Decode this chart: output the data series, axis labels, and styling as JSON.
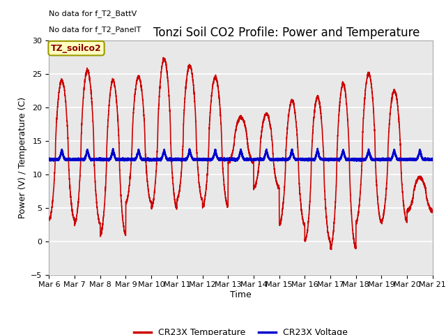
{
  "title": "Tonzi Soil CO2 Profile: Power and Temperature",
  "ylabel": "Power (V) / Temperature (C)",
  "xlabel": "Time",
  "ylim": [
    -5,
    30
  ],
  "yticks": [
    -5,
    0,
    5,
    10,
    15,
    20,
    25,
    30
  ],
  "xlim": [
    0,
    15
  ],
  "xtick_labels": [
    "Mar 6",
    "Mar 7",
    "Mar 8",
    "Mar 9",
    "Mar 10",
    "Mar 11",
    "Mar 12",
    "Mar 13",
    "Mar 14",
    "Mar 15",
    "Mar 16",
    "Mar 17",
    "Mar 18",
    "Mar 19",
    "Mar 20",
    "Mar 21"
  ],
  "no_data_text1": "No data for f_T2_BattV",
  "no_data_text2": "No data for f_T2_PanelT",
  "legend_label_box": "TZ_soilco2",
  "temp_color": "#CC0000",
  "voltage_color": "#0000CC",
  "plot_bg_color": "#E8E8E8",
  "grid_color": "#FFFFFF",
  "legend_temp": "CR23X Temperature",
  "legend_voltage": "CR23X Voltage",
  "title_fontsize": 12,
  "axis_fontsize": 9,
  "tick_fontsize": 8,
  "day_maxes": [
    24.0,
    25.5,
    24.0,
    24.5,
    27.2,
    26.2,
    24.5,
    18.5,
    19.0,
    21.0,
    21.5,
    23.5,
    25.0,
    22.5,
    9.5
  ],
  "day_mins": [
    3.2,
    2.7,
    1.0,
    5.8,
    5.0,
    6.2,
    5.2,
    11.8,
    8.0,
    2.5,
    0.0,
    -1.0,
    2.8,
    3.0,
    4.5
  ]
}
